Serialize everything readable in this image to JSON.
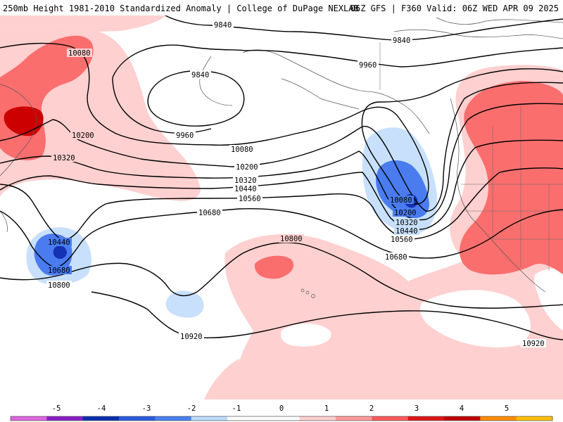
{
  "header": {
    "title_left": "250mb Height 1981-2010 Standardized Anomaly | College of DuPage NEXLAB",
    "title_right": "06Z GFS | F360 Valid: 06Z WED APR 09 2025"
  },
  "contour_labels": [
    {
      "text": "9840"
    },
    {
      "text": "9840"
    },
    {
      "text": "9840"
    },
    {
      "text": "9960"
    },
    {
      "text": "9960"
    },
    {
      "text": "10080"
    },
    {
      "text": "10080"
    },
    {
      "text": "10080"
    },
    {
      "text": "10200"
    },
    {
      "text": "10200"
    },
    {
      "text": "10200"
    },
    {
      "text": "10320"
    },
    {
      "text": "10320"
    },
    {
      "text": "10320"
    },
    {
      "text": "10440"
    },
    {
      "text": "10440"
    },
    {
      "text": "10440"
    },
    {
      "text": "10560"
    },
    {
      "text": "10560"
    },
    {
      "text": "10680"
    },
    {
      "text": "10680"
    },
    {
      "text": "10680"
    },
    {
      "text": "10800"
    },
    {
      "text": "10800"
    },
    {
      "text": "10920"
    },
    {
      "text": "10920"
    }
  ],
  "colorbar": {
    "labels": [
      "-5",
      "-4",
      "-3",
      "-2",
      "-1",
      "0",
      "1",
      "2",
      "3",
      "4",
      "5"
    ],
    "colors": [
      "#e066e0",
      "#8a1fc6",
      "#0b2fb0",
      "#2a5be0",
      "#4a80f0",
      "#bcdcff",
      "#ffffff",
      "#ffffff",
      "#ffd0d0",
      "#ff9a9a",
      "#ff5a5a",
      "#e01515",
      "#c00000",
      "#ff8c00",
      "#ffc000"
    ]
  },
  "colors": {
    "anomaly_pos_1": "#ffd0d0",
    "anomaly_pos_2": "#fa6e6e",
    "anomaly_pos_3": "#cc0000",
    "anomaly_neg_1": "#c8e0fb",
    "anomaly_neg_2": "#4a7cf0",
    "anomaly_neg_3": "#1432b4"
  }
}
